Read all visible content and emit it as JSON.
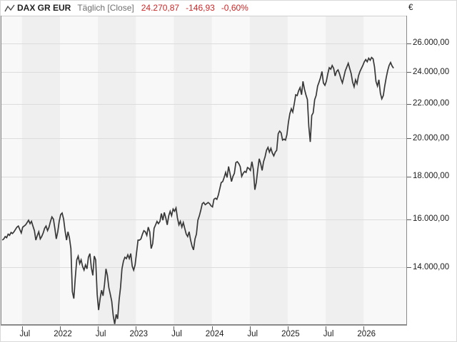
{
  "header": {
    "title": "DAX GR EUR",
    "subtitle": "Täglich [Close]",
    "last_price": "24.270,87",
    "change": "-146,93",
    "change_percent": "-0,60%"
  },
  "colors": {
    "line": "#383838",
    "quote_red": "#cb2727",
    "band_light": "#f8f8f8",
    "band_dark": "#efefef",
    "grid": "#dcdcdc",
    "plot_border": "#8a8a8a",
    "plot_border_top": "#d0d0d0",
    "tick": "#5a5a5a",
    "label_text": "#1c1c1c"
  },
  "chart_data": {
    "type": "line",
    "title": "DAX GR EUR Täglich [Close]",
    "currency": "€",
    "scale_y": "log",
    "grid": "horizontal-only",
    "legend_position": "none",
    "x_range_years": [
      2021.2286,
      2026.5625
    ],
    "y_range": [
      11950,
      28050
    ],
    "y_ticks": [
      {
        "value": 26000,
        "label": "26.000,00"
      },
      {
        "value": 24000,
        "label": "24.000,00"
      },
      {
        "value": 22000,
        "label": "22.000,00"
      },
      {
        "value": 20000,
        "label": "20.000,00"
      },
      {
        "value": 18000,
        "label": "18.000,00"
      },
      {
        "value": 16000,
        "label": "16.000,00"
      },
      {
        "value": 14000,
        "label": "14.000,00"
      }
    ],
    "x_ticks": [
      {
        "t": 2021.5,
        "label": "Jul"
      },
      {
        "t": 2022.0,
        "label": "2022"
      },
      {
        "t": 2022.5,
        "label": "Jul"
      },
      {
        "t": 2023.0,
        "label": "2023"
      },
      {
        "t": 2023.5,
        "label": "Jul"
      },
      {
        "t": 2024.0,
        "label": "2024"
      },
      {
        "t": 2024.5,
        "label": "Jul"
      },
      {
        "t": 2025.0,
        "label": "2025"
      },
      {
        "t": 2025.5,
        "label": "Jul"
      },
      {
        "t": 2026.0,
        "label": "2026"
      }
    ],
    "shaded_half_year_bands": [
      [
        2021.5,
        2022.0
      ],
      [
        2022.5,
        2023.0
      ],
      [
        2023.5,
        2024.0
      ],
      [
        2024.5,
        2025.0
      ],
      [
        2025.5,
        2026.0
      ]
    ],
    "series": [
      {
        "name": "DAX GR EUR",
        "sampling": "weekly approximation of daily closes",
        "start_year": 2021.24,
        "step_years": 0.0192307692,
        "values": [
          15100,
          15150,
          15250,
          15200,
          15350,
          15300,
          15420,
          15380,
          15450,
          15550,
          15650,
          15700,
          15550,
          15400,
          15650,
          15700,
          15750,
          15850,
          15950,
          15800,
          15900,
          15700,
          15500,
          15100,
          15300,
          15450,
          15150,
          15250,
          15400,
          15600,
          15700,
          15500,
          15650,
          15900,
          16100,
          16000,
          15600,
          15150,
          15450,
          15900,
          16200,
          16270,
          16000,
          15500,
          15100,
          15450,
          15200,
          14750,
          13100,
          12850,
          13600,
          14300,
          14450,
          14150,
          14300,
          14050,
          13900,
          14100,
          13950,
          14400,
          14550,
          14000,
          13700,
          14450,
          14300,
          13000,
          12450,
          12850,
          13150,
          12950,
          13350,
          13950,
          13700,
          13250,
          13000,
          12750,
          12250,
          11980,
          12300,
          12150,
          12800,
          13250,
          13950,
          14250,
          14400,
          14350,
          14500,
          14350,
          14550,
          14050,
          13900,
          14100,
          14600,
          15100,
          15100,
          15150,
          15350,
          15500,
          15450,
          15300,
          15650,
          15450,
          14750,
          14950,
          15600,
          15750,
          15900,
          15800,
          15900,
          16250,
          15950,
          16300,
          16050,
          15750,
          16150,
          16350,
          16150,
          16450,
          16350,
          16500,
          16050,
          15750,
          15900,
          15650,
          15850,
          15600,
          15350,
          15250,
          15450,
          15100,
          14850,
          14700,
          15150,
          15350,
          15950,
          16150,
          16400,
          16700,
          16750,
          16650,
          16700,
          16750,
          16700,
          16600,
          16550,
          16900,
          16950,
          16900,
          17100,
          17400,
          17700,
          17750,
          17950,
          18200,
          17950,
          18500,
          18150,
          17750,
          18000,
          18150,
          18700,
          18750,
          18650,
          18500,
          18000,
          18150,
          18250,
          18200,
          18450,
          18400,
          18300,
          18750,
          18350,
          17350,
          17700,
          18350,
          18900,
          18650,
          18300,
          18750,
          19000,
          19350,
          19500,
          19250,
          19450,
          19200,
          19050,
          19250,
          19350,
          20250,
          20400,
          20300,
          19900,
          19950,
          19900,
          20200,
          20900,
          21400,
          21700,
          21500,
          22000,
          22550,
          22500,
          22800,
          23000,
          22550,
          23400,
          22900,
          22550,
          22250,
          20650,
          19800,
          21300,
          21450,
          22250,
          22500,
          23100,
          23350,
          23650,
          24050,
          23300,
          23150,
          23400,
          23900,
          24300,
          24200,
          24450,
          24250,
          23750,
          24050,
          24150,
          23900,
          23550,
          23300,
          23700,
          24100,
          24350,
          24600,
          24250,
          23900,
          23350,
          23050,
          23500,
          23250,
          23750,
          24050,
          24250,
          24450,
          24700,
          24850,
          24700,
          24950,
          24800,
          25000,
          24900,
          24350,
          23400,
          23100,
          23500,
          22650,
          22300,
          22500,
          23100,
          23650,
          24100,
          24450,
          24650,
          24418,
          24270.87
        ]
      }
    ]
  }
}
